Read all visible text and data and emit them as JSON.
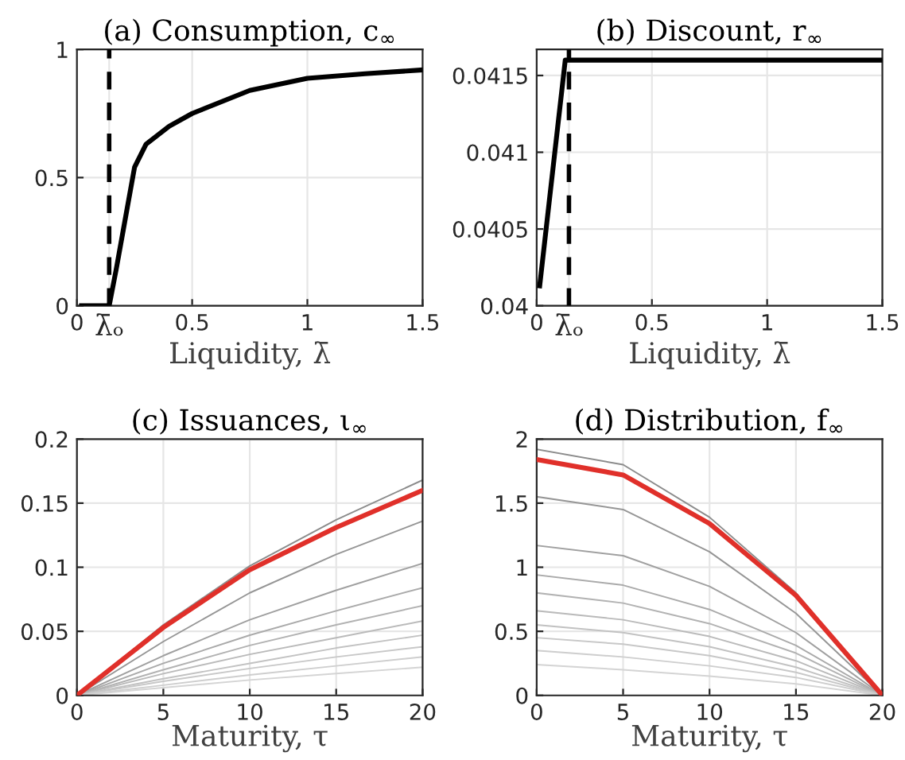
{
  "chart_data": [
    {
      "type": "line",
      "title": "(a) Consumption, c$_{∞}$",
      "xlabel": "Liquidity, λ̄",
      "xlim": [
        0,
        1.5
      ],
      "ylim": [
        0,
        1
      ],
      "xticks": [
        0,
        {
          "value": 0.14,
          "label": "λ̄ₒ"
        },
        0.5,
        1,
        1.5
      ],
      "yticks": [
        0,
        0.5,
        1
      ],
      "grid": true,
      "legend": false,
      "ref_lines": [
        {
          "axis": "x",
          "value": 0.14,
          "color": "#000000",
          "line_style": "dashed"
        }
      ],
      "series": [
        {
          "color": "#000000",
          "x": [
            0.02,
            0.14,
            0.17,
            0.2,
            0.25,
            0.3,
            0.4,
            0.5,
            0.75,
            1,
            1.25,
            1.5
          ],
          "values": [
            0,
            0,
            0.14,
            0.29,
            0.54,
            0.63,
            0.7,
            0.75,
            0.84,
            0.887,
            0.905,
            0.92
          ]
        }
      ]
    },
    {
      "type": "line",
      "title": "(b) Discount, r$_{∞}$",
      "xlabel": "Liquidity, λ̄",
      "xlim": [
        0,
        1.5
      ],
      "ylim": [
        0.04,
        0.04167
      ],
      "xticks": [
        0,
        {
          "value": 0.14,
          "label": "λ̄ₒ"
        },
        0.5,
        1,
        1.5
      ],
      "yticks": [
        0.04,
        0.0405,
        0.041,
        0.0415
      ],
      "grid": true,
      "legend": false,
      "ref_lines": [
        {
          "axis": "x",
          "value": 0.14,
          "color": "#000000",
          "line_style": "dashed"
        }
      ],
      "series": [
        {
          "color": "#000000",
          "x": [
            0.013,
            0.124,
            1.5
          ],
          "values": [
            0.04013,
            0.0416,
            0.0416
          ]
        }
      ]
    },
    {
      "type": "line",
      "title": "(c) Issuances, ι$_{∞}$",
      "xlabel": "Maturity, τ",
      "xlim": [
        0,
        20
      ],
      "ylim": [
        0,
        0.2
      ],
      "xticks": [
        0,
        5,
        10,
        15,
        20
      ],
      "yticks": [
        0,
        0.05,
        0.1,
        0.15,
        0.2
      ],
      "grid": true,
      "legend": false,
      "x": [
        0,
        5,
        10,
        15,
        20
      ],
      "series": [
        {
          "color": "#8c8c8c",
          "values": [
            0,
            0.055,
            0.101,
            0.137,
            0.168
          ]
        },
        {
          "color": "#969696",
          "values": [
            0,
            0.042,
            0.08,
            0.11,
            0.136
          ]
        },
        {
          "color": "#a0a0a0",
          "values": [
            0,
            0.031,
            0.059,
            0.082,
            0.103
          ]
        },
        {
          "color": "#aaaaaa",
          "values": [
            0,
            0.025,
            0.047,
            0.066,
            0.084
          ]
        },
        {
          "color": "#b2b2b2",
          "values": [
            0,
            0.02,
            0.039,
            0.055,
            0.07
          ]
        },
        {
          "color": "#bababa",
          "values": [
            0,
            0.017,
            0.032,
            0.045,
            0.058
          ]
        },
        {
          "color": "#c2c2c2",
          "values": [
            0,
            0.013,
            0.025,
            0.037,
            0.047
          ]
        },
        {
          "color": "#c8c8c8",
          "values": [
            0,
            0.011,
            0.021,
            0.03,
            0.038
          ]
        },
        {
          "color": "#cecece",
          "values": [
            0,
            0.008,
            0.016,
            0.023,
            0.03
          ]
        },
        {
          "color": "#d4d4d4",
          "values": [
            0,
            0.006,
            0.012,
            0.017,
            0.022
          ]
        },
        {
          "color": "#e0302a",
          "values": [
            0,
            0.053,
            0.098,
            0.131,
            0.16
          ]
        }
      ]
    },
    {
      "type": "line",
      "title": "(d) Distribution, f$_{∞}$",
      "xlabel": "Maturity, τ",
      "xlim": [
        0,
        20
      ],
      "ylim": [
        0,
        2
      ],
      "xticks": [
        0,
        5,
        10,
        15,
        20
      ],
      "yticks": [
        0,
        0.5,
        1,
        1.5,
        2
      ],
      "grid": true,
      "legend": false,
      "x": [
        0,
        5,
        10,
        15,
        20
      ],
      "series": [
        {
          "color": "#8c8c8c",
          "values": [
            1.92,
            1.8,
            1.39,
            0.8,
            0
          ]
        },
        {
          "color": "#969696",
          "values": [
            1.55,
            1.45,
            1.12,
            0.64,
            0
          ]
        },
        {
          "color": "#a0a0a0",
          "values": [
            1.17,
            1.09,
            0.85,
            0.49,
            0
          ]
        },
        {
          "color": "#aaaaaa",
          "values": [
            0.94,
            0.86,
            0.67,
            0.39,
            0
          ]
        },
        {
          "color": "#b2b2b2",
          "values": [
            0.8,
            0.72,
            0.56,
            0.33,
            0
          ]
        },
        {
          "color": "#bababa",
          "values": [
            0.66,
            0.59,
            0.46,
            0.27,
            0
          ]
        },
        {
          "color": "#c2c2c2",
          "values": [
            0.55,
            0.49,
            0.38,
            0.22,
            0
          ]
        },
        {
          "color": "#c8c8c8",
          "values": [
            0.45,
            0.4,
            0.31,
            0.18,
            0
          ]
        },
        {
          "color": "#cecece",
          "values": [
            0.35,
            0.3,
            0.23,
            0.14,
            0
          ]
        },
        {
          "color": "#d4d4d4",
          "values": [
            0.24,
            0.2,
            0.15,
            0.09,
            0
          ]
        },
        {
          "color": "#e0302a",
          "values": [
            1.84,
            1.72,
            1.34,
            0.78,
            0
          ]
        }
      ]
    }
  ]
}
